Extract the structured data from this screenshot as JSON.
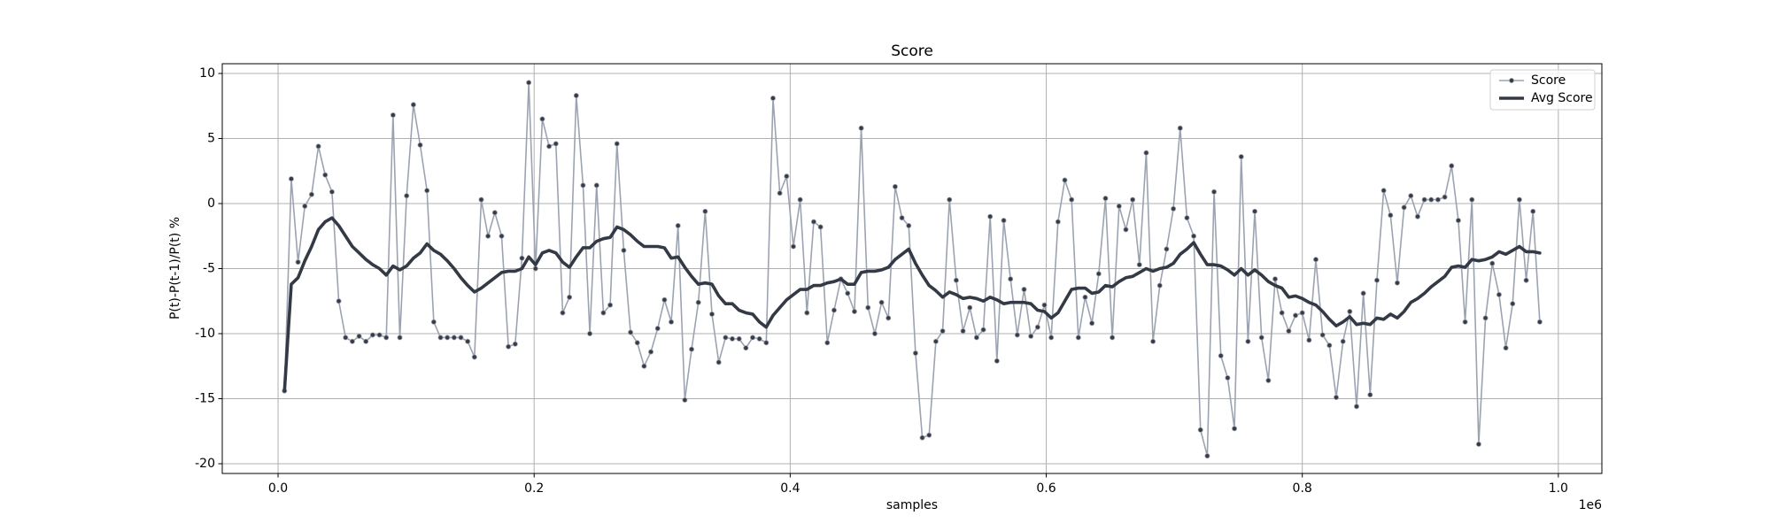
{
  "chart_data": {
    "type": "line",
    "title": "Score",
    "xlabel": "samples",
    "ylabel": "P(t)-P(t-1)/P(t) %",
    "x_offset_label": "1e6",
    "xlim": [
      -43600,
      1034000
    ],
    "ylim": [
      -20.75,
      10.75
    ],
    "xticks": [
      {
        "value": 0,
        "label": "0.0"
      },
      {
        "value": 200000,
        "label": "0.2"
      },
      {
        "value": 400000,
        "label": "0.4"
      },
      {
        "value": 600000,
        "label": "0.6"
      },
      {
        "value": 800000,
        "label": "0.8"
      },
      {
        "value": 1000000,
        "label": "1.0"
      }
    ],
    "yticks": [
      -20,
      -15,
      -10,
      -5,
      0,
      5,
      10
    ],
    "grid": true,
    "legend": "upper-right",
    "x": [
      5000,
      10300,
      15600,
      20900,
      26200,
      31500,
      36800,
      42100,
      47400,
      52700,
      58000,
      63300,
      68600,
      73900,
      79200,
      84500,
      89800,
      95100,
      100400,
      105700,
      111000,
      116300,
      121600,
      126900,
      132200,
      137500,
      142800,
      148100,
      153400,
      158700,
      164000,
      169300,
      174600,
      179900,
      185200,
      190500,
      195800,
      201100,
      206400,
      211700,
      217000,
      222300,
      227600,
      232900,
      238200,
      243500,
      248800,
      254100,
      259400,
      264700,
      270000,
      275300,
      280600,
      285900,
      291200,
      296500,
      301800,
      307100,
      312400,
      317700,
      323000,
      328300,
      333600,
      338900,
      344200,
      349500,
      354800,
      360100,
      365400,
      370700,
      376000,
      381300,
      386600,
      391900,
      397200,
      402500,
      407800,
      413100,
      418400,
      423700,
      429000,
      434300,
      439600,
      444900,
      450200,
      455500,
      460800,
      466100,
      471400,
      476700,
      482000,
      487300,
      492600,
      497900,
      503200,
      508500,
      513800,
      519100,
      524400,
      529700,
      535000,
      540300,
      545600,
      550900,
      556200,
      561500,
      566800,
      572100,
      577400,
      582700,
      588000,
      593300,
      598600,
      603900,
      609200,
      614500,
      619800,
      625100,
      630400,
      635700,
      641000,
      646300,
      651600,
      656900,
      662200,
      667500,
      672800,
      678100,
      683400,
      688700,
      694000,
      699300,
      704600,
      709900,
      715200,
      720500,
      725800,
      731100,
      736400,
      741700,
      747000,
      752300,
      757600,
      762900,
      768200,
      773500,
      778800,
      784100,
      789400,
      794700,
      800000,
      805300,
      810600,
      815900,
      821200,
      826500,
      831800,
      837100,
      842400,
      847700,
      853000,
      858300,
      863600,
      868900,
      874200,
      879500,
      884800,
      890100,
      895400,
      900700,
      906000,
      911300,
      916600,
      921900,
      927200,
      932500,
      937800,
      943100,
      948400,
      953700,
      959000,
      964300,
      969600,
      974900,
      980200,
      985500
    ],
    "series": [
      {
        "name": "Score",
        "color": "#9ca3b0",
        "marker_color": "#363b46",
        "marker": true,
        "line_width": 1.6,
        "values": [
          -14.4,
          1.9,
          -4.5,
          -0.2,
          0.7,
          4.4,
          2.2,
          0.9,
          -7.5,
          -10.3,
          -10.6,
          -10.2,
          -10.6,
          -10.1,
          -10.1,
          -10.3,
          6.8,
          -10.3,
          0.6,
          7.6,
          4.5,
          1.0,
          -9.1,
          -10.3,
          -10.3,
          -10.3,
          -10.3,
          -10.6,
          -11.8,
          0.3,
          -2.5,
          -0.7,
          -2.5,
          -11.0,
          -10.8,
          -4.2,
          9.3,
          -5.0,
          6.5,
          4.4,
          4.6,
          -8.4,
          -7.2,
          8.3,
          1.4,
          -10.0,
          1.4,
          -8.4,
          -7.8,
          4.6,
          -3.6,
          -9.9,
          -10.7,
          -12.5,
          -11.4,
          -9.6,
          -7.4,
          -9.1,
          -1.7,
          -15.1,
          -11.2,
          -7.6,
          -0.6,
          -8.5,
          -12.2,
          -10.3,
          -10.4,
          -10.4,
          -11.1,
          -10.3,
          -10.4,
          -10.7,
          8.1,
          0.8,
          2.1,
          -3.3,
          0.3,
          -8.4,
          -1.4,
          -1.8,
          -10.7,
          -8.2,
          -5.8,
          -6.9,
          -8.3,
          5.8,
          -8.0,
          -10.0,
          -7.6,
          -8.8,
          1.3,
          -1.1,
          -1.7,
          -11.5,
          -18.0,
          -17.8,
          -10.6,
          -9.8,
          0.3,
          -5.9,
          -9.8,
          -8.0,
          -10.3,
          -9.7,
          -1.0,
          -12.1,
          -1.3,
          -5.8,
          -10.1,
          -6.6,
          -10.2,
          -9.5,
          -7.8,
          -10.3,
          -1.4,
          1.8,
          0.3,
          -10.3,
          -7.2,
          -9.2,
          -5.4,
          0.4,
          -10.3,
          -0.2,
          -2.0,
          0.3,
          -4.7,
          3.9,
          -10.6,
          -6.3,
          -3.5,
          -0.4,
          5.8,
          -1.1,
          -2.5,
          -17.4,
          -19.4,
          0.9,
          -11.7,
          -13.4,
          -17.3,
          3.6,
          -10.6,
          -0.6,
          -10.3,
          -13.6,
          -5.8,
          -8.4,
          -9.8,
          -8.6,
          -8.4,
          -10.5,
          -4.3,
          -10.1,
          -10.9,
          -14.9,
          -10.6,
          -8.3,
          -15.6,
          -6.9,
          -14.7,
          -5.9,
          1.0,
          -0.9,
          -6.1,
          -0.3,
          0.6,
          -1.0,
          0.3,
          0.3,
          0.3,
          0.5,
          2.9,
          -1.3,
          -9.1,
          0.3,
          -18.5,
          -8.8,
          -4.6,
          -7.0,
          -11.1,
          -7.7,
          0.3,
          -5.9,
          -0.6,
          -9.1
        ]
      },
      {
        "name": "Avg Score",
        "color": "#343a45",
        "marker": false,
        "line_width": 3.6,
        "values": [
          -14.4,
          -6.2,
          -5.7,
          -4.4,
          -3.3,
          -2.0,
          -1.4,
          -1.1,
          -1.7,
          -2.5,
          -3.3,
          -3.8,
          -4.3,
          -4.7,
          -5.0,
          -5.5,
          -4.8,
          -5.1,
          -4.8,
          -4.2,
          -3.8,
          -3.1,
          -3.6,
          -3.9,
          -4.4,
          -5.0,
          -5.7,
          -6.3,
          -6.8,
          -6.5,
          -6.1,
          -5.7,
          -5.3,
          -5.2,
          -5.2,
          -5.0,
          -4.1,
          -4.7,
          -3.8,
          -3.6,
          -3.8,
          -4.5,
          -4.9,
          -4.1,
          -3.4,
          -3.4,
          -2.9,
          -2.7,
          -2.6,
          -1.8,
          -2.0,
          -2.4,
          -2.9,
          -3.3,
          -3.3,
          -3.3,
          -3.4,
          -4.2,
          -4.1,
          -4.9,
          -5.6,
          -6.2,
          -6.1,
          -6.2,
          -7.1,
          -7.7,
          -7.7,
          -8.2,
          -8.4,
          -8.5,
          -9.1,
          -9.5,
          -8.6,
          -8.0,
          -7.4,
          -7.0,
          -6.6,
          -6.6,
          -6.3,
          -6.3,
          -6.1,
          -6.0,
          -5.8,
          -6.2,
          -6.2,
          -5.3,
          -5.2,
          -5.2,
          -5.1,
          -4.9,
          -4.3,
          -3.9,
          -3.5,
          -4.6,
          -5.5,
          -6.3,
          -6.7,
          -7.2,
          -6.8,
          -7.0,
          -7.3,
          -7.2,
          -7.3,
          -7.5,
          -7.2,
          -7.4,
          -7.7,
          -7.6,
          -7.6,
          -7.6,
          -7.7,
          -8.2,
          -8.3,
          -8.8,
          -8.4,
          -7.5,
          -6.6,
          -6.5,
          -6.5,
          -6.9,
          -6.8,
          -6.3,
          -6.4,
          -6.0,
          -5.7,
          -5.6,
          -5.3,
          -5.0,
          -5.2,
          -5.0,
          -4.9,
          -4.6,
          -3.9,
          -3.5,
          -3.0,
          -3.9,
          -4.7,
          -4.7,
          -4.8,
          -5.1,
          -5.5,
          -5.0,
          -5.5,
          -5.1,
          -5.5,
          -6.0,
          -6.3,
          -6.5,
          -7.2,
          -7.1,
          -7.3,
          -7.6,
          -7.8,
          -8.3,
          -8.9,
          -9.4,
          -9.1,
          -8.7,
          -9.3,
          -9.2,
          -9.3,
          -8.8,
          -8.9,
          -8.5,
          -8.8,
          -8.3,
          -7.6,
          -7.3,
          -6.9,
          -6.4,
          -6.0,
          -5.6,
          -4.9,
          -4.8,
          -4.9,
          -4.3,
          -4.4,
          -4.3,
          -4.1,
          -3.7,
          -3.9,
          -3.6,
          -3.3,
          -3.7,
          -3.7,
          -3.8
        ]
      }
    ]
  }
}
